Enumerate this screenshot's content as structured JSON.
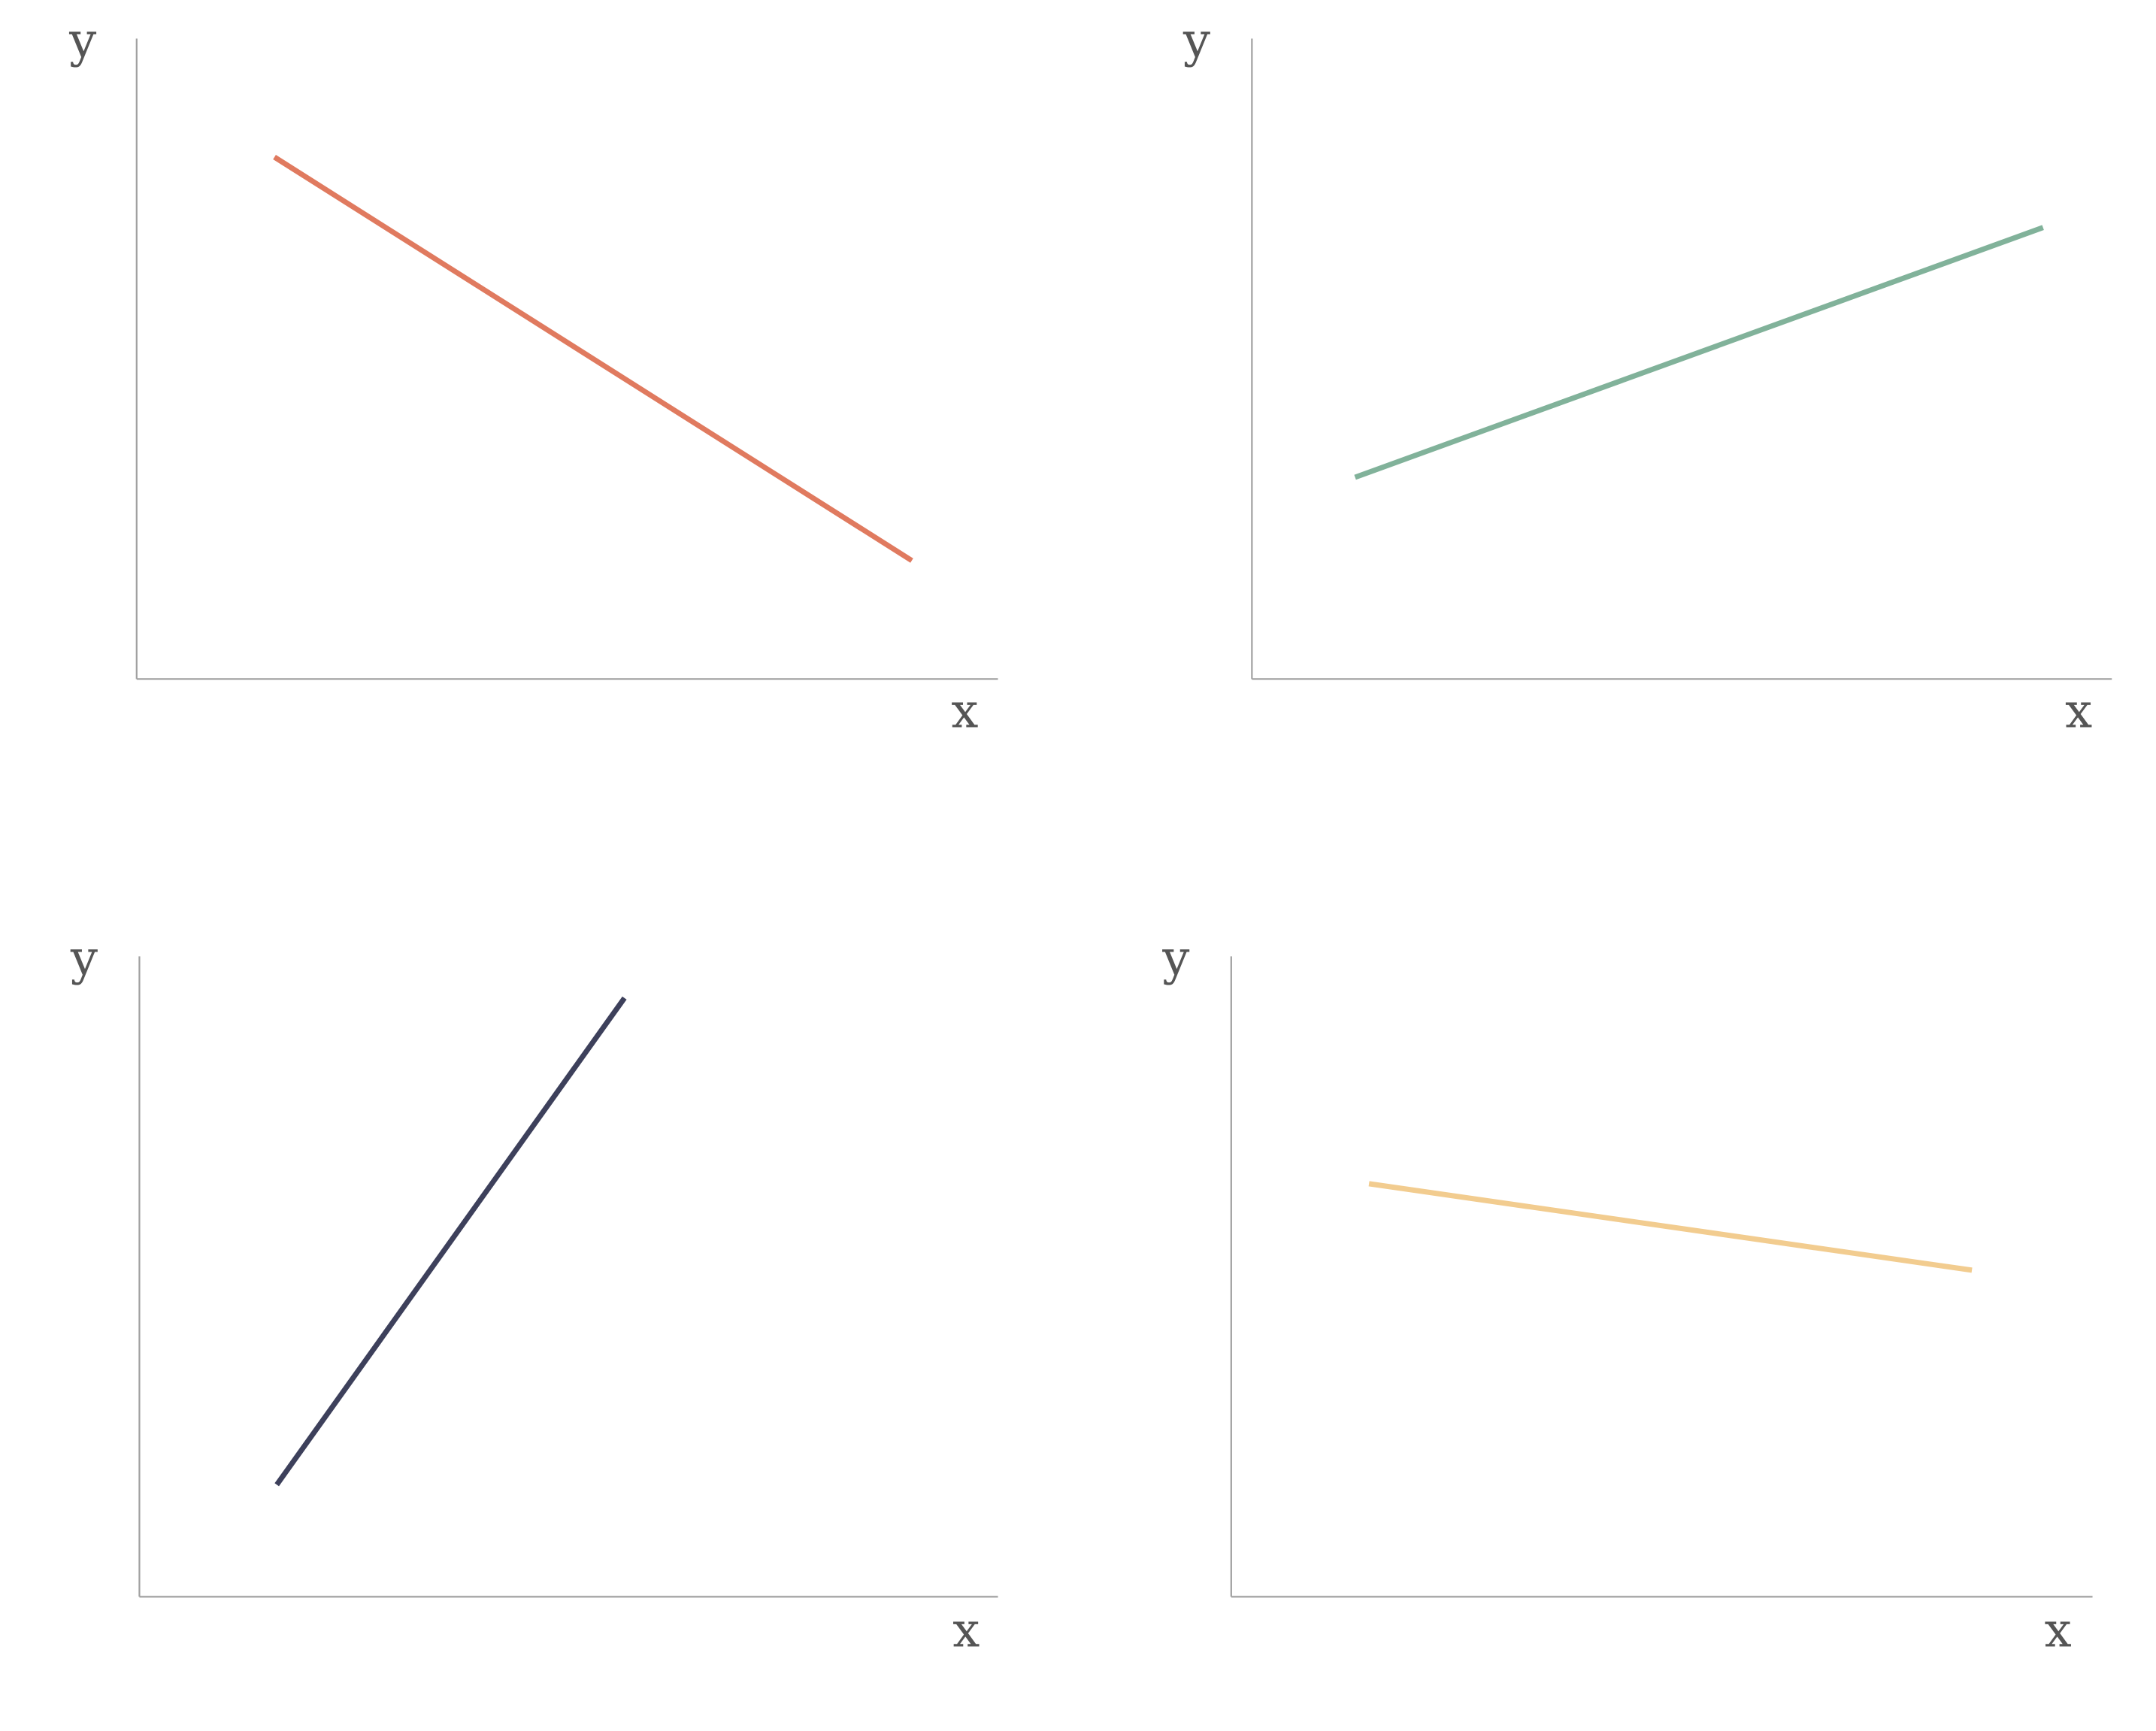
{
  "chart_data": [
    {
      "type": "line",
      "position": "top-left",
      "title": "",
      "xlabel": "x",
      "ylabel": "y",
      "xlim": [
        0,
        10
      ],
      "ylim": [
        0,
        10
      ],
      "grid": false,
      "series": [
        {
          "color": "#E07A5F",
          "x": [
            1.6,
            9.0
          ],
          "y": [
            8.15,
            1.85
          ]
        }
      ]
    },
    {
      "type": "line",
      "position": "top-right",
      "title": "",
      "xlabel": "x",
      "ylabel": "y",
      "xlim": [
        0,
        10
      ],
      "ylim": [
        0,
        10
      ],
      "grid": false,
      "series": [
        {
          "color": "#81B29A",
          "x": [
            1.2,
            9.2
          ],
          "y": [
            3.15,
            7.05
          ]
        }
      ]
    },
    {
      "type": "line",
      "position": "bottom-left",
      "title": "",
      "xlabel": "x",
      "ylabel": "y",
      "xlim": [
        0,
        10
      ],
      "ylim": [
        0,
        10
      ],
      "grid": false,
      "series": [
        {
          "color": "#3D405B",
          "x": [
            1.6,
            5.65
          ],
          "y": [
            1.75,
            9.35
          ]
        }
      ]
    },
    {
      "type": "line",
      "position": "bottom-right",
      "title": "",
      "xlabel": "x",
      "ylabel": "y",
      "xlim": [
        0,
        10
      ],
      "ylim": [
        0,
        10
      ],
      "grid": false,
      "series": [
        {
          "color": "#F2CC8F",
          "x": [
            1.6,
            8.6
          ],
          "y": [
            6.45,
            5.1
          ]
        }
      ]
    }
  ]
}
